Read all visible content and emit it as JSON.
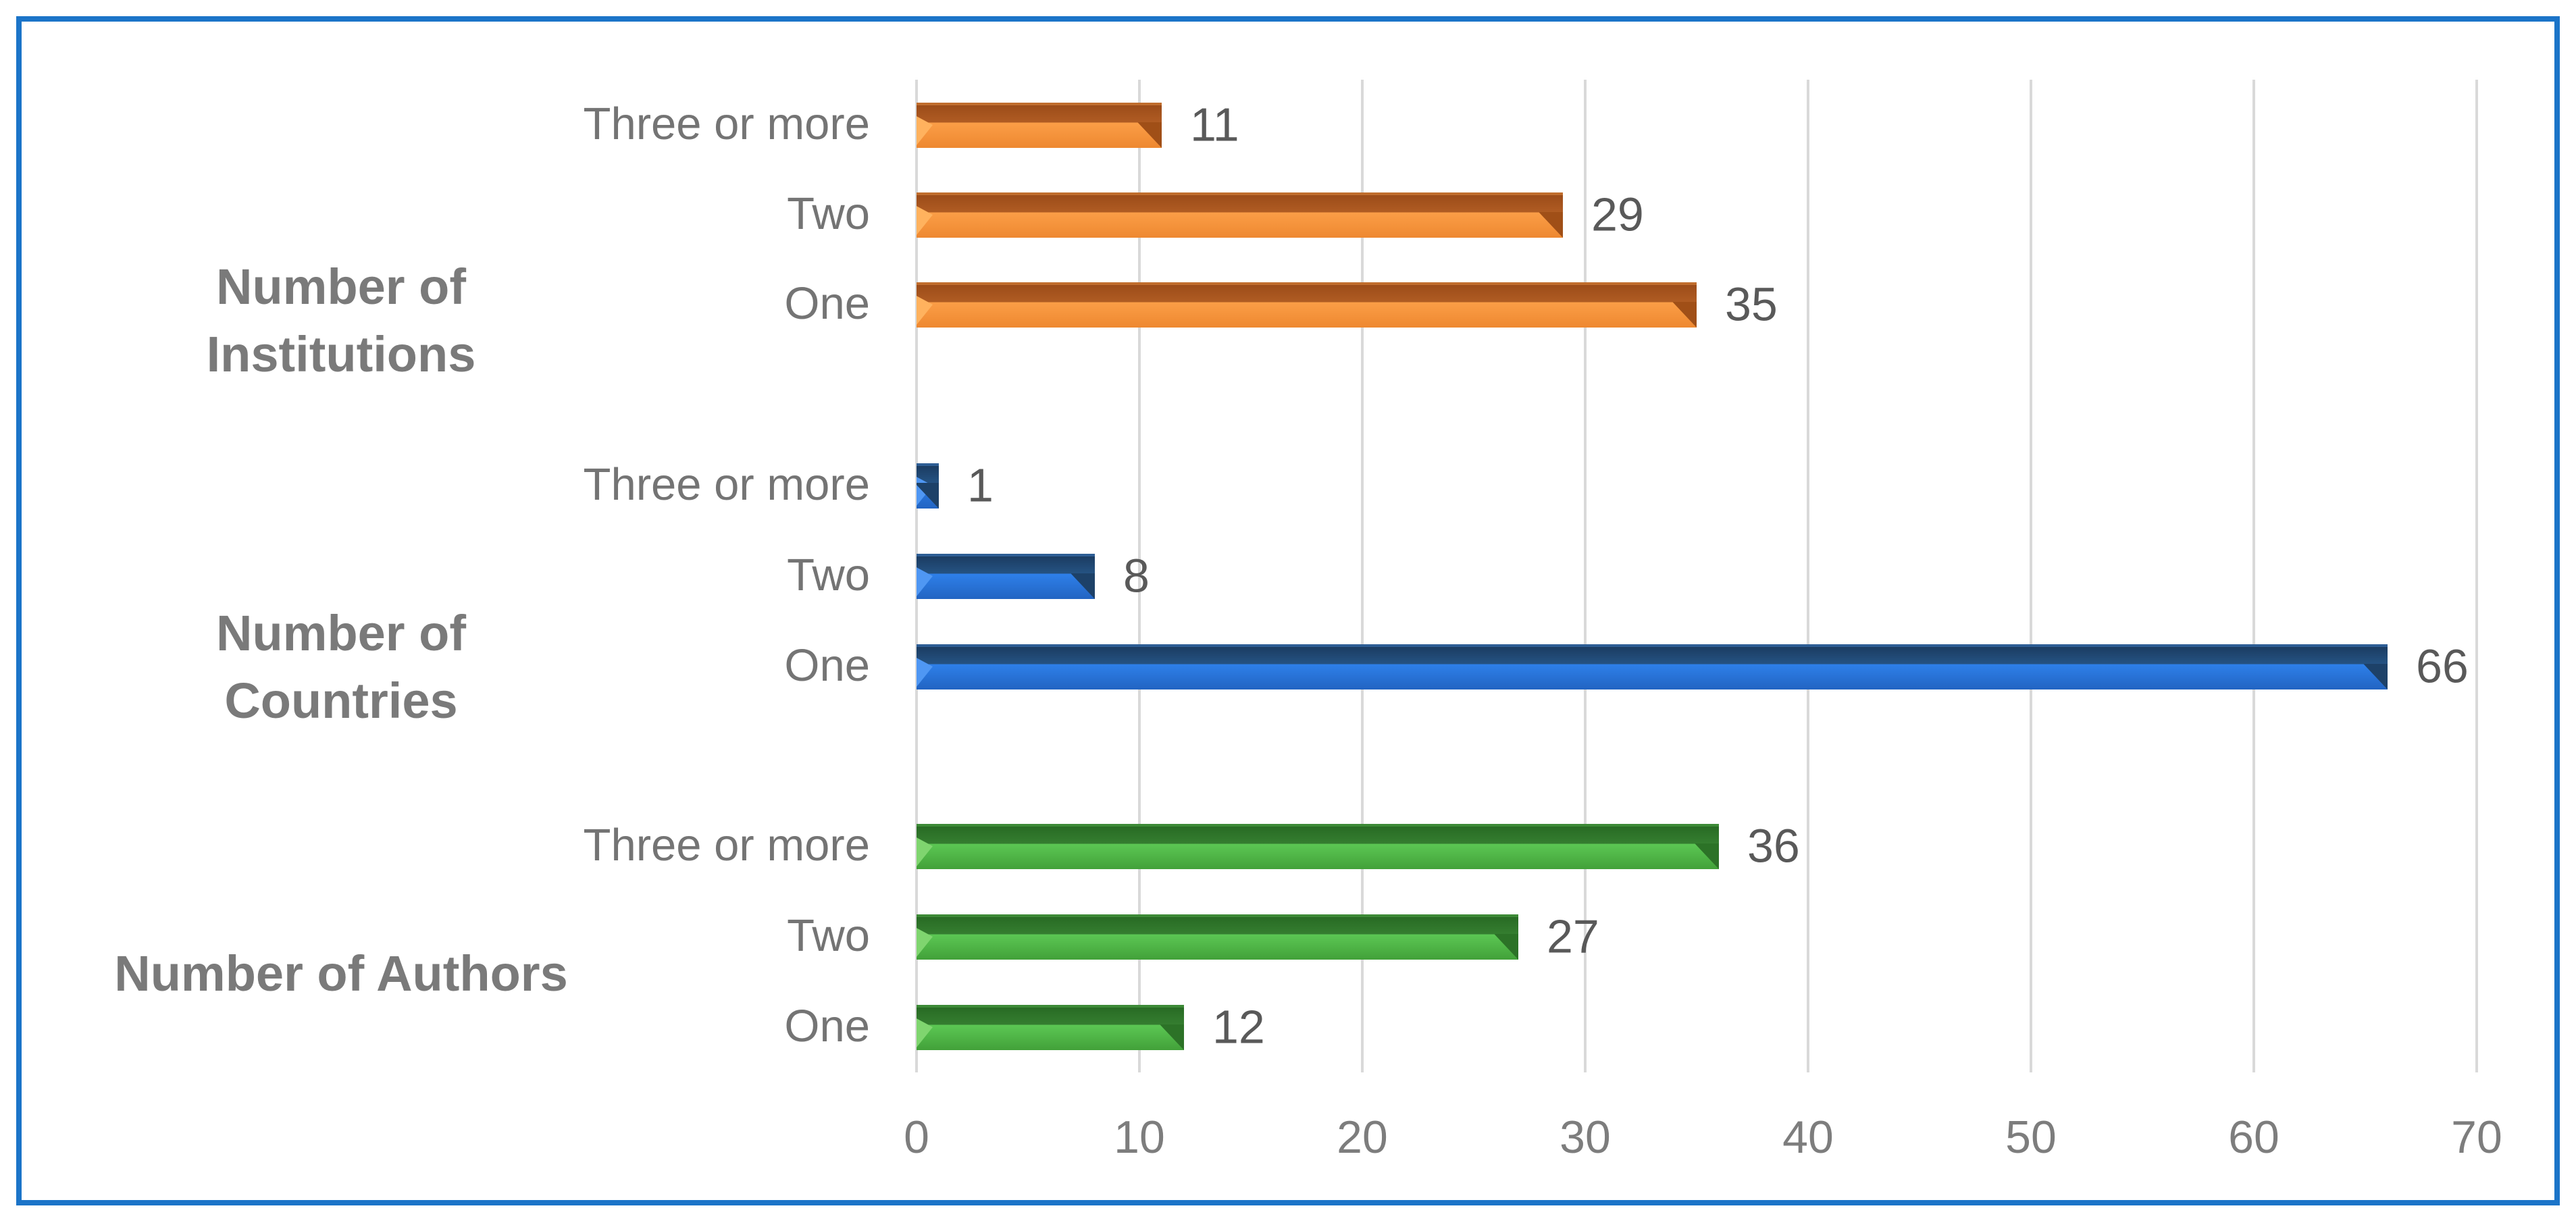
{
  "window": {
    "frame_border_color": "#1B74C8",
    "background_color": "#FFFFFF"
  },
  "chart_data": {
    "type": "bar",
    "orientation": "horizontal",
    "title": "",
    "xlabel": "",
    "ylabel": "",
    "grid": true,
    "legend": false,
    "value_labels_shown": true,
    "x_axis": {
      "min": 0,
      "max": 70,
      "tick_interval": 10,
      "tick_labels": [
        "0",
        "10",
        "20",
        "30",
        "40",
        "50",
        "60",
        "70"
      ]
    },
    "groups": [
      {
        "label": "Number of Institutions",
        "label_lines": [
          "Number of",
          "Institutions"
        ],
        "series_color": "orange",
        "bars": [
          {
            "category": "Three or more",
            "value": 11
          },
          {
            "category": "Two",
            "value": 29
          },
          {
            "category": "One",
            "value": 35
          }
        ]
      },
      {
        "label": "Number of Countries",
        "label_lines": [
          "Number of",
          "Countries"
        ],
        "series_color": "blue",
        "bars": [
          {
            "category": "Three or more",
            "value": 1
          },
          {
            "category": "Two",
            "value": 8
          },
          {
            "category": "One",
            "value": 66
          }
        ]
      },
      {
        "label": "Number of Authors",
        "label_lines": [
          "Number of Authors"
        ],
        "series_color": "green",
        "bars": [
          {
            "category": "Three or more",
            "value": 36
          },
          {
            "category": "Two",
            "value": 27
          },
          {
            "category": "One",
            "value": 12
          }
        ]
      }
    ],
    "colors": {
      "gridline": "#D9D9D9",
      "orange": {
        "edge": "#C06D2D",
        "dark1": "#9C4C19",
        "dark2": "#B05C23",
        "light1": "#FB9E47",
        "light2": "#EE8830",
        "bevel": "#FFB25E",
        "cap": "#A04F17"
      },
      "blue": {
        "edge": "#2E5E95",
        "dark1": "#1B3C62",
        "dark2": "#255383",
        "light1": "#2E80EA",
        "light2": "#2264C2",
        "bevel": "#4F97F3",
        "cap": "#1D4168"
      },
      "green": {
        "edge": "#3D8A37",
        "dark1": "#286B24",
        "dark2": "#357E30",
        "light1": "#5CC754",
        "light2": "#42A139",
        "bevel": "#7FD56F",
        "cap": "#2C7227"
      }
    },
    "text_colors": {
      "category": "#747474",
      "tick": "#7D7D7D",
      "value": "#595959",
      "group": "#7A7A7A"
    }
  }
}
